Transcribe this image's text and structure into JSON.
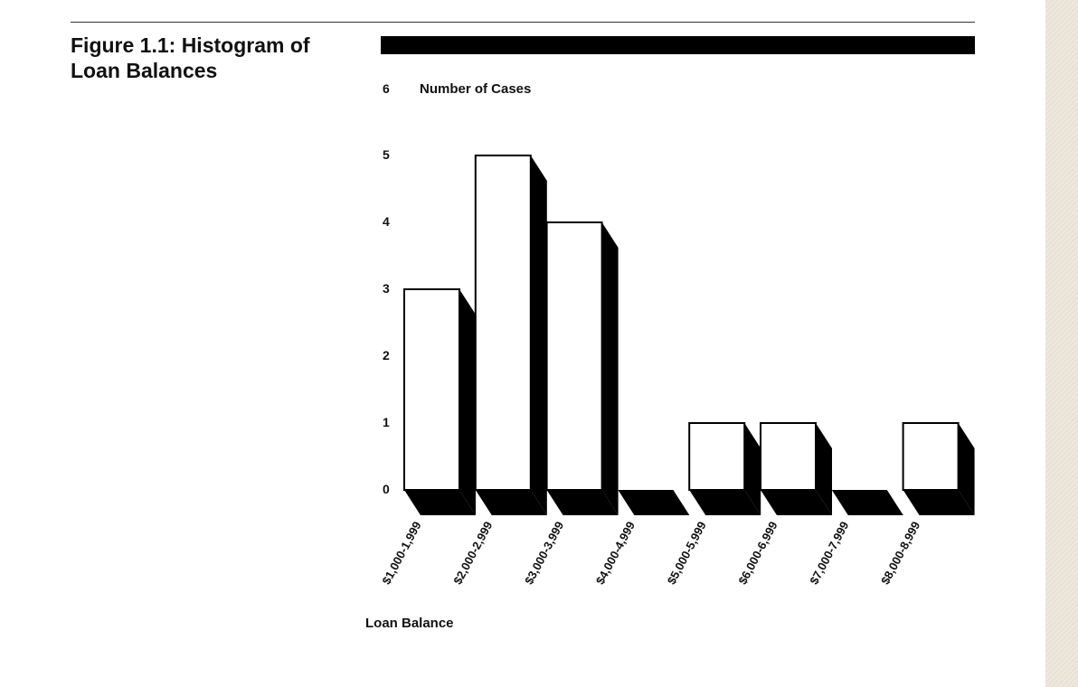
{
  "figure": {
    "title": "Figure 1.1: Histogram of Loan Balances"
  },
  "chart_data": {
    "type": "bar",
    "categories": [
      "$1,000-1,999",
      "$2,000-2,999",
      "$3,000-3,999",
      "$4,000-4,999",
      "$5,000-5,999",
      "$6,000-6,999",
      "$7,000-7,999",
      "$8,000-8,999"
    ],
    "values": [
      3,
      5,
      4,
      0,
      1,
      1,
      0,
      1
    ],
    "title": "Figure 1.1: Histogram of Loan Balances",
    "xlabel": "Loan Balance",
    "ylabel": "Number of Cases",
    "ylim": [
      0,
      6
    ],
    "yticks": [
      0,
      1,
      2,
      3,
      4,
      5,
      6
    ],
    "grid": false,
    "style": "3d-bar",
    "colors": {
      "bar_face": "#ffffff",
      "bar_shadow": "#000000"
    }
  }
}
